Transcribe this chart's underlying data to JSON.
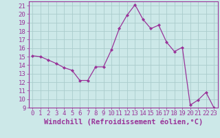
{
  "x": [
    0,
    1,
    2,
    3,
    4,
    5,
    6,
    7,
    8,
    9,
    10,
    11,
    12,
    13,
    14,
    15,
    16,
    17,
    18,
    19,
    20,
    21,
    22,
    23
  ],
  "y": [
    15.1,
    15.0,
    14.6,
    14.2,
    13.7,
    13.4,
    12.2,
    12.2,
    13.8,
    13.8,
    15.8,
    18.3,
    19.9,
    21.1,
    19.4,
    18.3,
    18.7,
    16.7,
    15.6,
    16.1,
    9.3,
    9.9,
    10.8,
    9.0
  ],
  "line_color": "#993399",
  "marker": "D",
  "marker_size": 2,
  "linewidth": 0.9,
  "background_color": "#cce8e8",
  "grid_color": "#aacccc",
  "xlabel": "Windchill (Refroidissement éolien,°C)",
  "ylabel": "",
  "title": "",
  "xlim": [
    -0.5,
    23.5
  ],
  "ylim": [
    9,
    21.5
  ],
  "yticks": [
    9,
    10,
    11,
    12,
    13,
    14,
    15,
    16,
    17,
    18,
    19,
    20,
    21
  ],
  "xticks": [
    0,
    1,
    2,
    3,
    4,
    5,
    6,
    7,
    8,
    9,
    10,
    11,
    12,
    13,
    14,
    15,
    16,
    17,
    18,
    19,
    20,
    21,
    22,
    23
  ],
  "tick_color": "#993399",
  "label_color": "#993399",
  "axis_color": "#993399",
  "font_size": 6.5
}
